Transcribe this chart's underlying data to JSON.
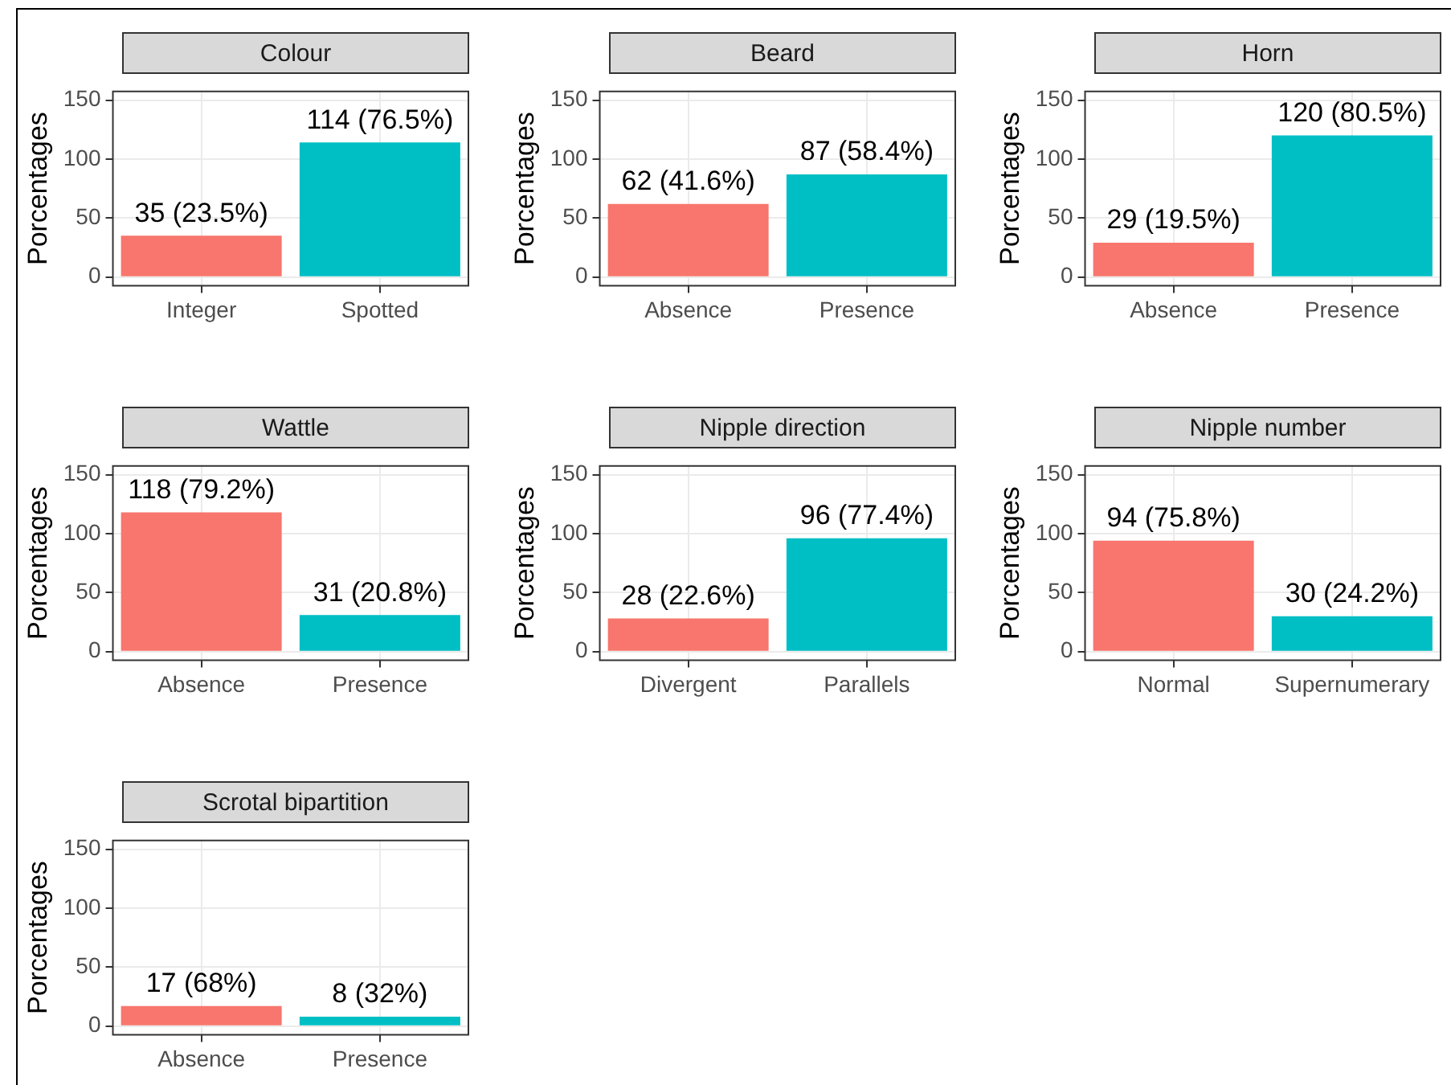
{
  "chart_data": [
    {
      "type": "bar",
      "title": "Colour",
      "ylabel": "Porcentages",
      "categories": [
        "Integer",
        "Spotted"
      ],
      "values": [
        35,
        114
      ],
      "colors": [
        "#f8766d",
        "#00bfc4"
      ],
      "value_labels": [
        "35 (23.5%)",
        "114 (76.5%)"
      ],
      "ylim": [
        -8,
        158
      ],
      "yticks": [
        0,
        50,
        100,
        150
      ],
      "grid": true
    },
    {
      "type": "bar",
      "title": "Beard",
      "ylabel": "Porcentages",
      "categories": [
        "Absence",
        "Presence"
      ],
      "values": [
        62,
        87
      ],
      "colors": [
        "#f8766d",
        "#00bfc4"
      ],
      "value_labels": [
        "62 (41.6%)",
        "87 (58.4%)"
      ],
      "ylim": [
        -8,
        158
      ],
      "yticks": [
        0,
        50,
        100,
        150
      ],
      "grid": true
    },
    {
      "type": "bar",
      "title": "Horn",
      "ylabel": "Porcentages",
      "categories": [
        "Absence",
        "Presence"
      ],
      "values": [
        29,
        120
      ],
      "colors": [
        "#f8766d",
        "#00bfc4"
      ],
      "value_labels": [
        "29 (19.5%)",
        "120 (80.5%)"
      ],
      "ylim": [
        -8,
        158
      ],
      "yticks": [
        0,
        50,
        100,
        150
      ],
      "grid": true
    },
    {
      "type": "bar",
      "title": "Wattle",
      "ylabel": "Porcentages",
      "categories": [
        "Absence",
        "Presence"
      ],
      "values": [
        118,
        31
      ],
      "colors": [
        "#f8766d",
        "#00bfc4"
      ],
      "value_labels": [
        "118 (79.2%)",
        "31 (20.8%)"
      ],
      "ylim": [
        -8,
        158
      ],
      "yticks": [
        0,
        50,
        100,
        150
      ],
      "grid": true
    },
    {
      "type": "bar",
      "title": "Nipple direction",
      "ylabel": "Porcentages",
      "categories": [
        "Divergent",
        "Parallels"
      ],
      "values": [
        28,
        96
      ],
      "colors": [
        "#f8766d",
        "#00bfc4"
      ],
      "value_labels": [
        "28 (22.6%)",
        "96 (77.4%)"
      ],
      "ylim": [
        -8,
        158
      ],
      "yticks": [
        0,
        50,
        100,
        150
      ],
      "grid": true
    },
    {
      "type": "bar",
      "title": "Nipple number",
      "ylabel": "Porcentages",
      "categories": [
        "Normal",
        "Supernumerary"
      ],
      "values": [
        94,
        30
      ],
      "colors": [
        "#f8766d",
        "#00bfc4"
      ],
      "value_labels": [
        "94 (75.8%)",
        "30 (24.2%)"
      ],
      "ylim": [
        -8,
        158
      ],
      "yticks": [
        0,
        50,
        100,
        150
      ],
      "grid": true
    },
    {
      "type": "bar",
      "title": "Scrotal bipartition",
      "ylabel": "Porcentages",
      "categories": [
        "Absence",
        "Presence"
      ],
      "values": [
        17,
        8
      ],
      "colors": [
        "#f8766d",
        "#00bfc4"
      ],
      "value_labels": [
        "17 (68%)",
        "8 (32%)"
      ],
      "ylim": [
        -8,
        158
      ],
      "yticks": [
        0,
        50,
        100,
        150
      ],
      "grid": true
    }
  ]
}
